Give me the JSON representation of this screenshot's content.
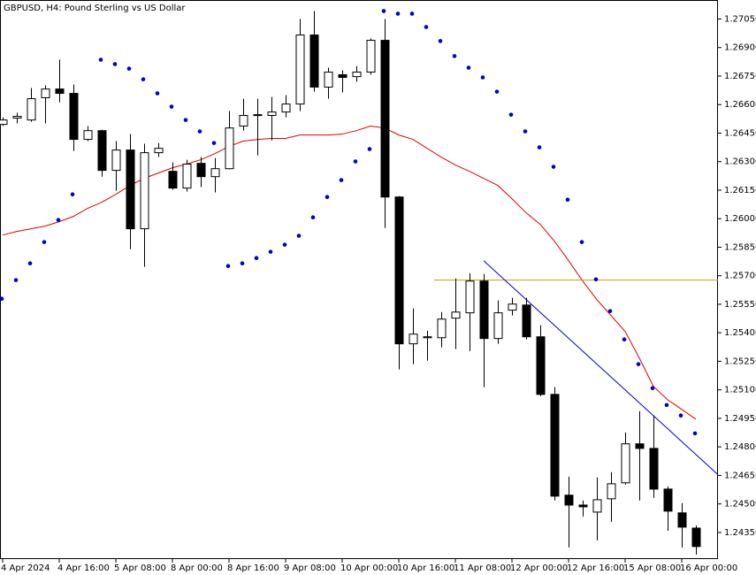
{
  "chart_data": {
    "type": "candlestick",
    "title": "GBPUSD, H4:  Pound Sterling vs US Dollar",
    "categories": [
      "4 Apr 2024",
      null,
      null,
      null,
      "4 Apr 16:00",
      null,
      null,
      null,
      "5 Apr 08:00",
      null,
      null,
      null,
      "8 Apr 00:00",
      null,
      null,
      null,
      "8 Apr 16:00",
      null,
      null,
      null,
      "9 Apr 08:00",
      null,
      null,
      null,
      "10 Apr 00:00",
      null,
      null,
      null,
      "10 Apr 16:00",
      null,
      null,
      null,
      "11 Apr 08:00",
      null,
      null,
      null,
      "12 Apr 00:00",
      null,
      null,
      null,
      "12 Apr 16:00",
      null,
      null,
      null,
      "15 Apr 08:00",
      null,
      null,
      null,
      "16 Apr 00:00",
      null
    ],
    "open": [
      1.26496,
      1.26529,
      1.26519,
      1.26636,
      1.26682,
      1.26659,
      1.26417,
      1.26463,
      1.26254,
      1.26361,
      1.25947,
      1.26347,
      1.26249,
      1.26161,
      1.26291,
      1.26221,
      1.26263,
      1.26487,
      1.26543,
      1.26543,
      1.26561,
      1.26603,
      1.26966,
      1.26692,
      1.26757,
      1.26747,
      1.26771,
      1.26938,
      1.26114,
      1.25342,
      1.25374,
      1.25374,
      1.25477,
      1.25505,
      1.25672,
      1.2537,
      1.25519,
      1.25546,
      1.25379,
      1.25076,
      1.24546,
      1.24494,
      1.24457,
      1.24527,
      1.24611,
      1.24816,
      1.24792,
      1.24578,
      1.24453,
      1.24373
    ],
    "high": [
      1.26533,
      1.26557,
      1.26687,
      1.26701,
      1.26836,
      1.26706,
      1.26487,
      1.26468,
      1.26408,
      1.26445,
      1.26394,
      1.26398,
      1.26296,
      1.2631,
      1.26324,
      1.26319,
      1.26566,
      1.26631,
      1.26631,
      1.2664,
      1.2665,
      1.2705,
      1.27092,
      1.26794,
      1.2678,
      1.26803,
      1.26948,
      1.2705,
      1.26119,
      1.25528,
      1.25411,
      1.25509,
      1.25686,
      1.25714,
      1.25709,
      1.2557,
      1.25584,
      1.25584,
      1.25439,
      1.25114,
      1.24643,
      1.24518,
      1.24639,
      1.24667,
      1.24876,
      1.24988,
      1.24965,
      1.24592,
      1.24504,
      1.24387
    ],
    "low": [
      1.26487,
      1.26501,
      1.2651,
      1.26501,
      1.26612,
      1.26356,
      1.26408,
      1.26221,
      1.26147,
      1.2584,
      1.25747,
      1.26324,
      1.26152,
      1.26142,
      1.26166,
      1.26138,
      1.26259,
      1.26463,
      1.26333,
      1.26412,
      1.26533,
      1.26566,
      1.26668,
      1.26631,
      1.26664,
      1.2672,
      1.26757,
      1.25951,
      1.25207,
      1.25235,
      1.25253,
      1.25323,
      1.25314,
      1.25304,
      1.25114,
      1.25342,
      1.25491,
      1.25365,
      1.25067,
      1.24518,
      1.24271,
      1.24434,
      1.24308,
      1.24406,
      1.24602,
      1.24518,
      1.24532,
      1.24359,
      1.24271,
      1.24234
    ],
    "close": [
      1.26519,
      1.26538,
      1.26631,
      1.26682,
      1.26659,
      1.26417,
      1.26463,
      1.26254,
      1.26361,
      1.25947,
      1.26347,
      1.2637,
      1.26161,
      1.26287,
      1.26221,
      1.26263,
      1.26477,
      1.26543,
      1.26547,
      1.26561,
      1.26603,
      1.26966,
      1.26692,
      1.26771,
      1.26743,
      1.26771,
      1.26938,
      1.26114,
      1.25342,
      1.25393,
      1.25379,
      1.25472,
      1.25509,
      1.25672,
      1.2537,
      1.25505,
      1.25551,
      1.25379,
      1.25076,
      1.24541,
      1.24494,
      1.24485,
      1.24522,
      1.24606,
      1.24816,
      1.24792,
      1.24578,
      1.24462,
      1.24378,
      1.24276
    ],
    "up_color": "#ffffff",
    "down_color": "#000000",
    "wick_color": "#000000",
    "sar": {
      "color": "#0000cd",
      "values": [
        1.25579,
        1.25677,
        1.25765,
        1.25877,
        1.25993,
        1.26128,
        null,
        1.26836,
        1.26813,
        1.26789,
        1.26733,
        1.26659,
        1.26589,
        1.26519,
        1.26459,
        1.26398,
        1.25751,
        1.25765,
        1.25793,
        1.25826,
        1.25863,
        1.2591,
        1.26007,
        1.26114,
        1.26203,
        1.26301,
        1.26366,
        1.27092,
        1.27078,
        1.27078,
        1.27008,
        1.26934,
        1.26855,
        1.26794,
        1.26743,
        1.26668,
        1.26547,
        1.26459,
        1.26375,
        1.26273,
        1.261,
        1.25877,
        1.25681,
        1.25514,
        1.25365,
        1.25235,
        1.25109,
        1.2502,
        1.24965,
        1.24871
      ]
    },
    "ma": {
      "color": "#e00000",
      "values": [
        1.25914,
        1.25933,
        1.25947,
        1.25961,
        1.25984,
        1.26012,
        1.26054,
        1.26086,
        1.26128,
        1.26175,
        1.26212,
        1.2624,
        1.26268,
        1.26287,
        1.2631,
        1.26342,
        1.2638,
        1.26408,
        1.26417,
        1.26422,
        1.26422,
        1.2644,
        1.2644,
        1.2644,
        1.26445,
        1.26463,
        1.26487,
        1.26477,
        1.2644,
        1.26417,
        1.2637,
        1.26324,
        1.26282,
        1.26249,
        1.26212,
        1.26175,
        1.26105,
        1.26031,
        1.2597,
        1.25882,
        1.25779,
        1.25672,
        1.25574,
        1.25491,
        1.25407,
        1.25267,
        1.25118,
        1.25048,
        1.24997,
        1.24946
      ]
    },
    "hline": {
      "value": 1.25677,
      "from": 31,
      "color": "#c8a000"
    },
    "trendline": {
      "x": [
        34,
        49
      ],
      "y": [
        1.25779,
        1.2476
      ],
      "color": "#0000cd"
    },
    "ylim": [
      1.2421,
      1.2715
    ],
    "yticks": [
      {
        "value": 1.2705,
        "label": "1.27050"
      },
      {
        "value": 1.269,
        "label": "1.26900"
      },
      {
        "value": 1.2675,
        "label": "1.26750"
      },
      {
        "value": 1.266,
        "label": "1.26600"
      },
      {
        "value": 1.2645,
        "label": "1.26450"
      },
      {
        "value": 1.263,
        "label": "1.26300"
      },
      {
        "value": 1.2615,
        "label": "1.26150"
      },
      {
        "value": 1.26,
        "label": "1.26000"
      },
      {
        "value": 1.2585,
        "label": "1.25850"
      },
      {
        "value": 1.257,
        "label": "1.25700"
      },
      {
        "value": 1.2555,
        "label": "1.25550"
      },
      {
        "value": 1.254,
        "label": "1.25400"
      },
      {
        "value": 1.2525,
        "label": "1.25250"
      },
      {
        "value": 1.251,
        "label": "1.25100"
      },
      {
        "value": 1.2495,
        "label": "1.24950"
      },
      {
        "value": 1.248,
        "label": "1.24800"
      },
      {
        "value": 1.2465,
        "label": "1.24650"
      },
      {
        "value": 1.245,
        "label": "1.24500"
      },
      {
        "value": 1.2435,
        "label": "1.24350"
      }
    ]
  }
}
